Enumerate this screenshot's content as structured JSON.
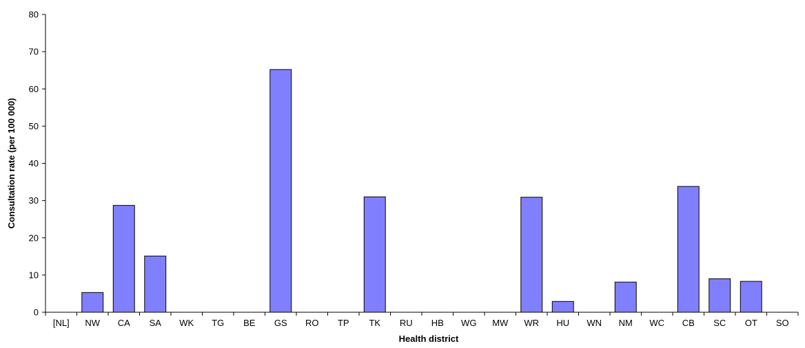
{
  "chart_data": {
    "type": "bar",
    "title": "",
    "xlabel": "Health district",
    "ylabel": "Consultation rate (per 100 000)",
    "ylim": [
      0,
      80
    ],
    "yticks": [
      0,
      10,
      20,
      30,
      40,
      50,
      60,
      70,
      80
    ],
    "grid": false,
    "legend": "none",
    "bar_color": "#8080ff",
    "bar_edge_color": "#000000",
    "categories": [
      "[NL]",
      "NW",
      "CA",
      "SA",
      "WK",
      "TG",
      "BE",
      "GS",
      "RO",
      "TP",
      "TK",
      "RU",
      "HB",
      "WG",
      "MW",
      "WR",
      "HU",
      "WN",
      "NM",
      "WC",
      "CB",
      "SC",
      "OT",
      "SO"
    ],
    "values": [
      0,
      5.3,
      28.7,
      15.1,
      0,
      0,
      0,
      65.2,
      0,
      0,
      31.0,
      0,
      0,
      0,
      0,
      30.9,
      2.9,
      0,
      8.1,
      0,
      33.8,
      9.0,
      8.3,
      0
    ]
  }
}
